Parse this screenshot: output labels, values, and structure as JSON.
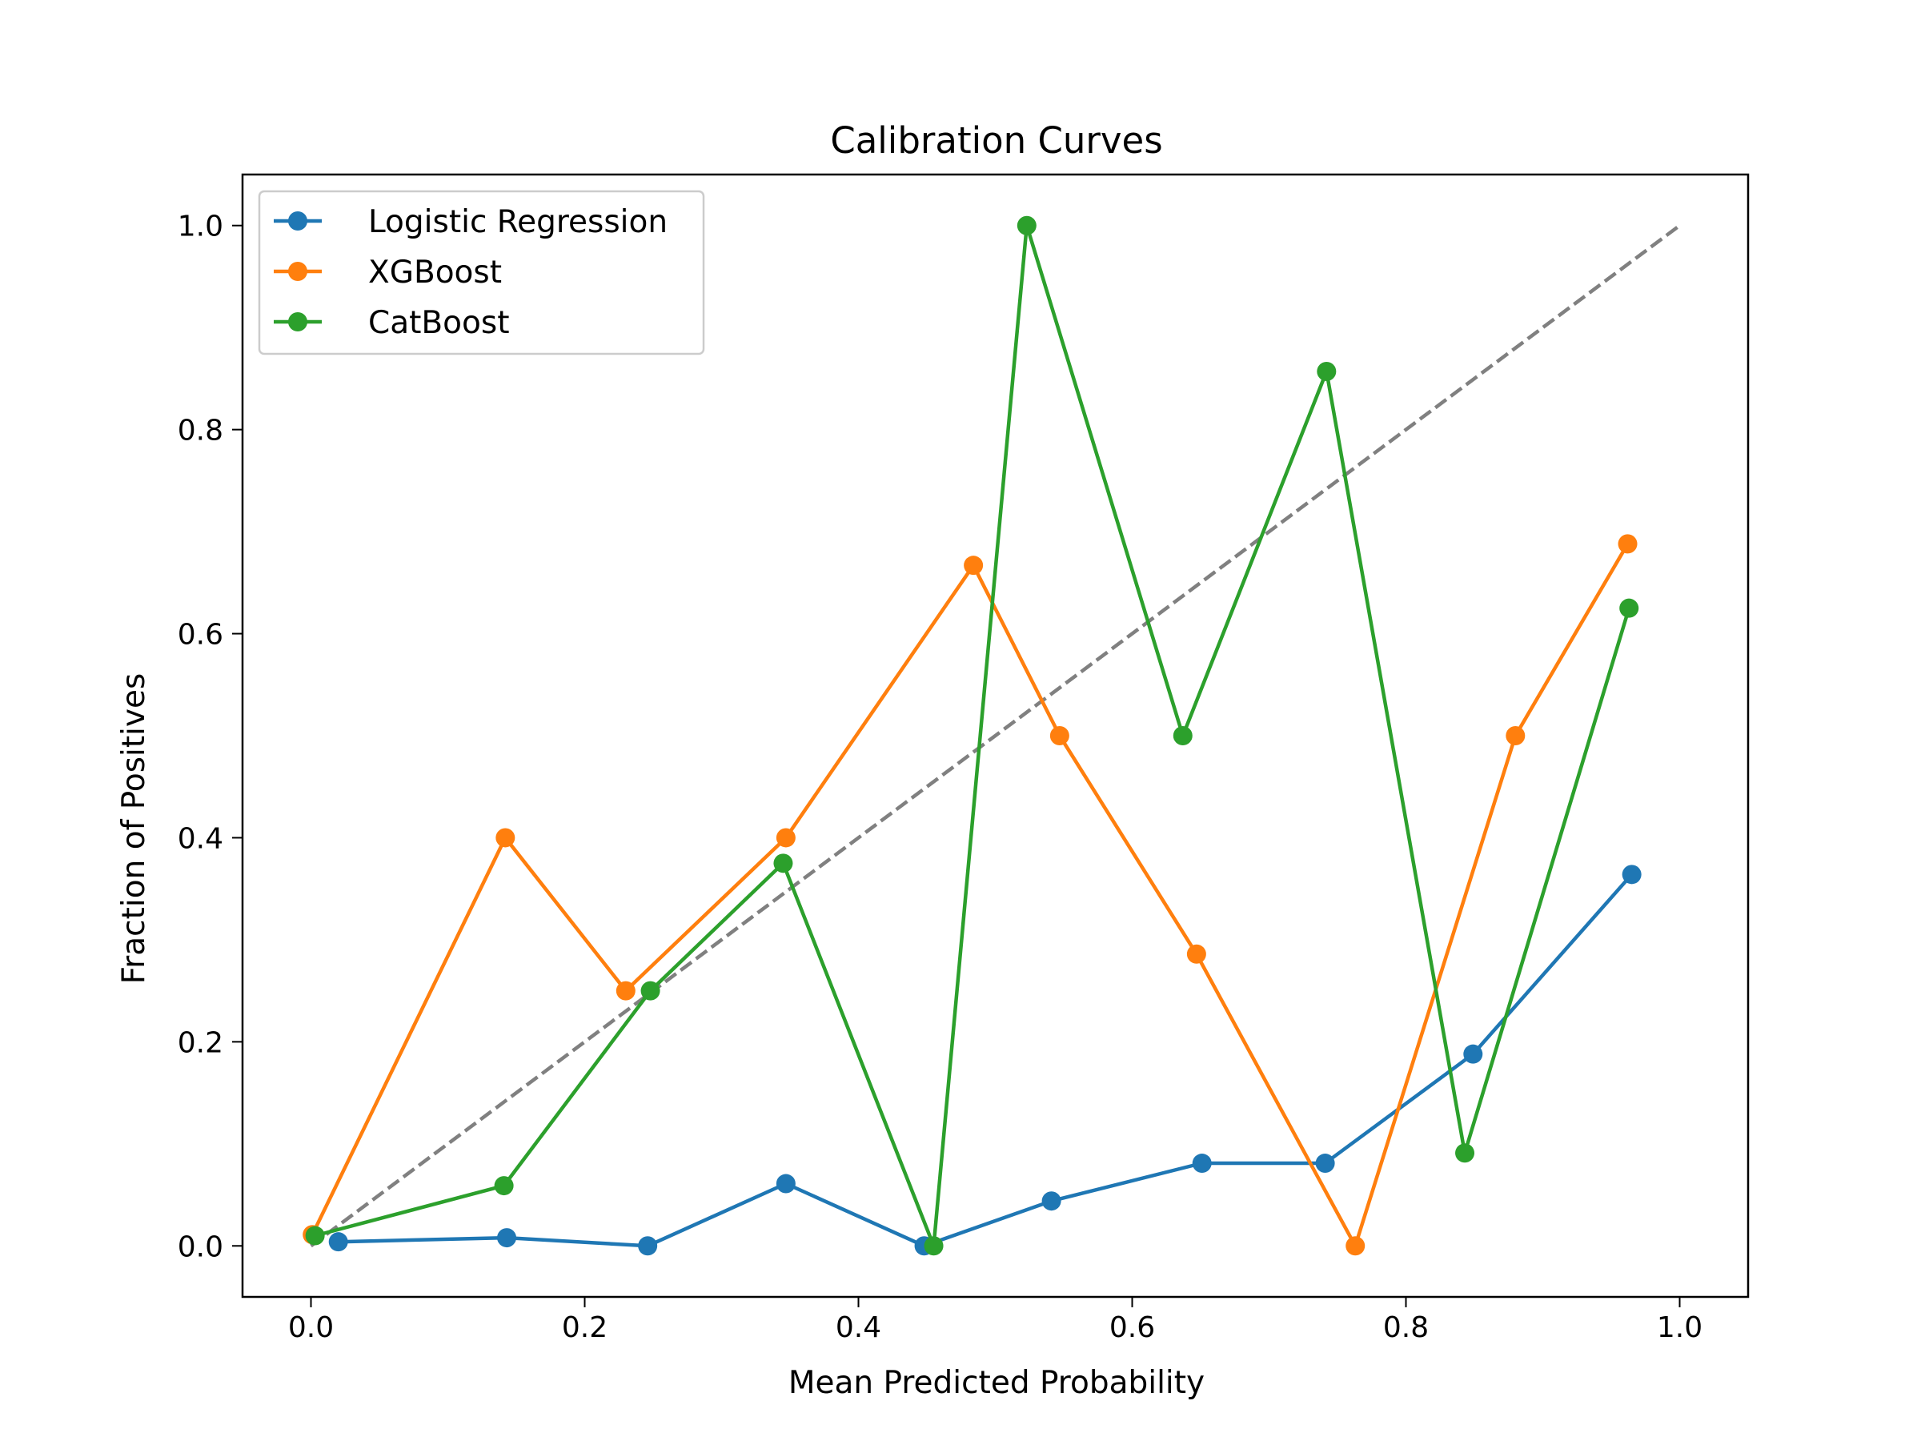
{
  "chart_data": {
    "type": "line",
    "title": "Calibration Curves",
    "xlabel": "Mean Predicted Probability",
    "ylabel": "Fraction of Positives",
    "xlim": [
      -0.05,
      1.05
    ],
    "ylim": [
      -0.05,
      1.05
    ],
    "xticks": [
      "0.0",
      "0.2",
      "0.4",
      "0.6",
      "0.8",
      "1.0"
    ],
    "yticks": [
      "0.0",
      "0.2",
      "0.4",
      "0.6",
      "0.8",
      "1.0"
    ],
    "grid": false,
    "legend_position": "top-left",
    "reference_line": {
      "x": [
        0,
        1
      ],
      "y": [
        0,
        1
      ],
      "color": "#808080",
      "style": "dashed"
    },
    "series": [
      {
        "name": "Logistic Regression",
        "color": "#1f77b4",
        "x": [
          0.02,
          0.143,
          0.246,
          0.347,
          0.448,
          0.541,
          0.651,
          0.741,
          0.849,
          0.965
        ],
        "y": [
          0.004,
          0.008,
          0.0,
          0.061,
          0.0,
          0.044,
          0.081,
          0.081,
          0.188,
          0.364
        ]
      },
      {
        "name": "XGBoost",
        "color": "#ff7f0e",
        "x": [
          0.001,
          0.142,
          0.23,
          0.347,
          0.484,
          0.547,
          0.647,
          0.763,
          0.88,
          0.962
        ],
        "y": [
          0.011,
          0.4,
          0.25,
          0.4,
          0.667,
          0.5,
          0.286,
          0.0,
          0.5,
          0.688
        ]
      },
      {
        "name": "CatBoost",
        "color": "#2ca02c",
        "x": [
          0.003,
          0.141,
          0.248,
          0.345,
          0.455,
          0.523,
          0.637,
          0.742,
          0.843,
          0.963
        ],
        "y": [
          0.01,
          0.059,
          0.25,
          0.375,
          0.0,
          1.0,
          0.5,
          0.857,
          0.091,
          0.625
        ]
      }
    ]
  }
}
